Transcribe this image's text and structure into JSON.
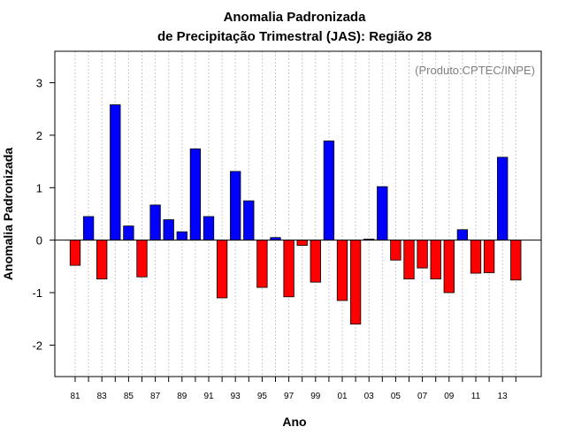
{
  "chart_data": {
    "type": "bar",
    "title": "Anomalia Padronizada",
    "subtitle": "de Precipitação Trimestral (JAS): Região 28",
    "xlabel": "Ano",
    "ylabel": "Anomalia Padronizada",
    "annotation": "(Produto:CPTEC/INPE)",
    "ylim": [
      -2.6,
      3.6
    ],
    "yticks": [
      -2,
      -1,
      0,
      1,
      2,
      3
    ],
    "grid": "vertical dotted",
    "colors": {
      "positive": "#0000ff",
      "negative": "#ff0000"
    },
    "categories": [
      "81",
      "82",
      "83",
      "84",
      "85",
      "86",
      "87",
      "88",
      "89",
      "90",
      "91",
      "92",
      "93",
      "94",
      "95",
      "96",
      "97",
      "98",
      "99",
      "00",
      "01",
      "02",
      "03",
      "04",
      "05",
      "06",
      "07",
      "08",
      "09",
      "10",
      "11",
      "12",
      "13",
      "14"
    ],
    "xtick_labels": [
      "81",
      "83",
      "85",
      "87",
      "89",
      "91",
      "93",
      "95",
      "97",
      "99",
      "01",
      "03",
      "05",
      "07",
      "09",
      "11",
      "13"
    ],
    "values": [
      -0.48,
      0.45,
      -0.74,
      2.58,
      0.27,
      -0.7,
      0.67,
      0.39,
      0.16,
      1.74,
      0.45,
      -1.1,
      1.31,
      0.75,
      -0.9,
      0.05,
      -1.08,
      -0.1,
      -0.8,
      1.89,
      -1.15,
      -1.6,
      0.02,
      1.02,
      -0.38,
      -0.74,
      -0.53,
      -0.74,
      -1.0,
      0.2,
      -0.63,
      -0.62,
      1.58,
      -0.76
    ]
  }
}
